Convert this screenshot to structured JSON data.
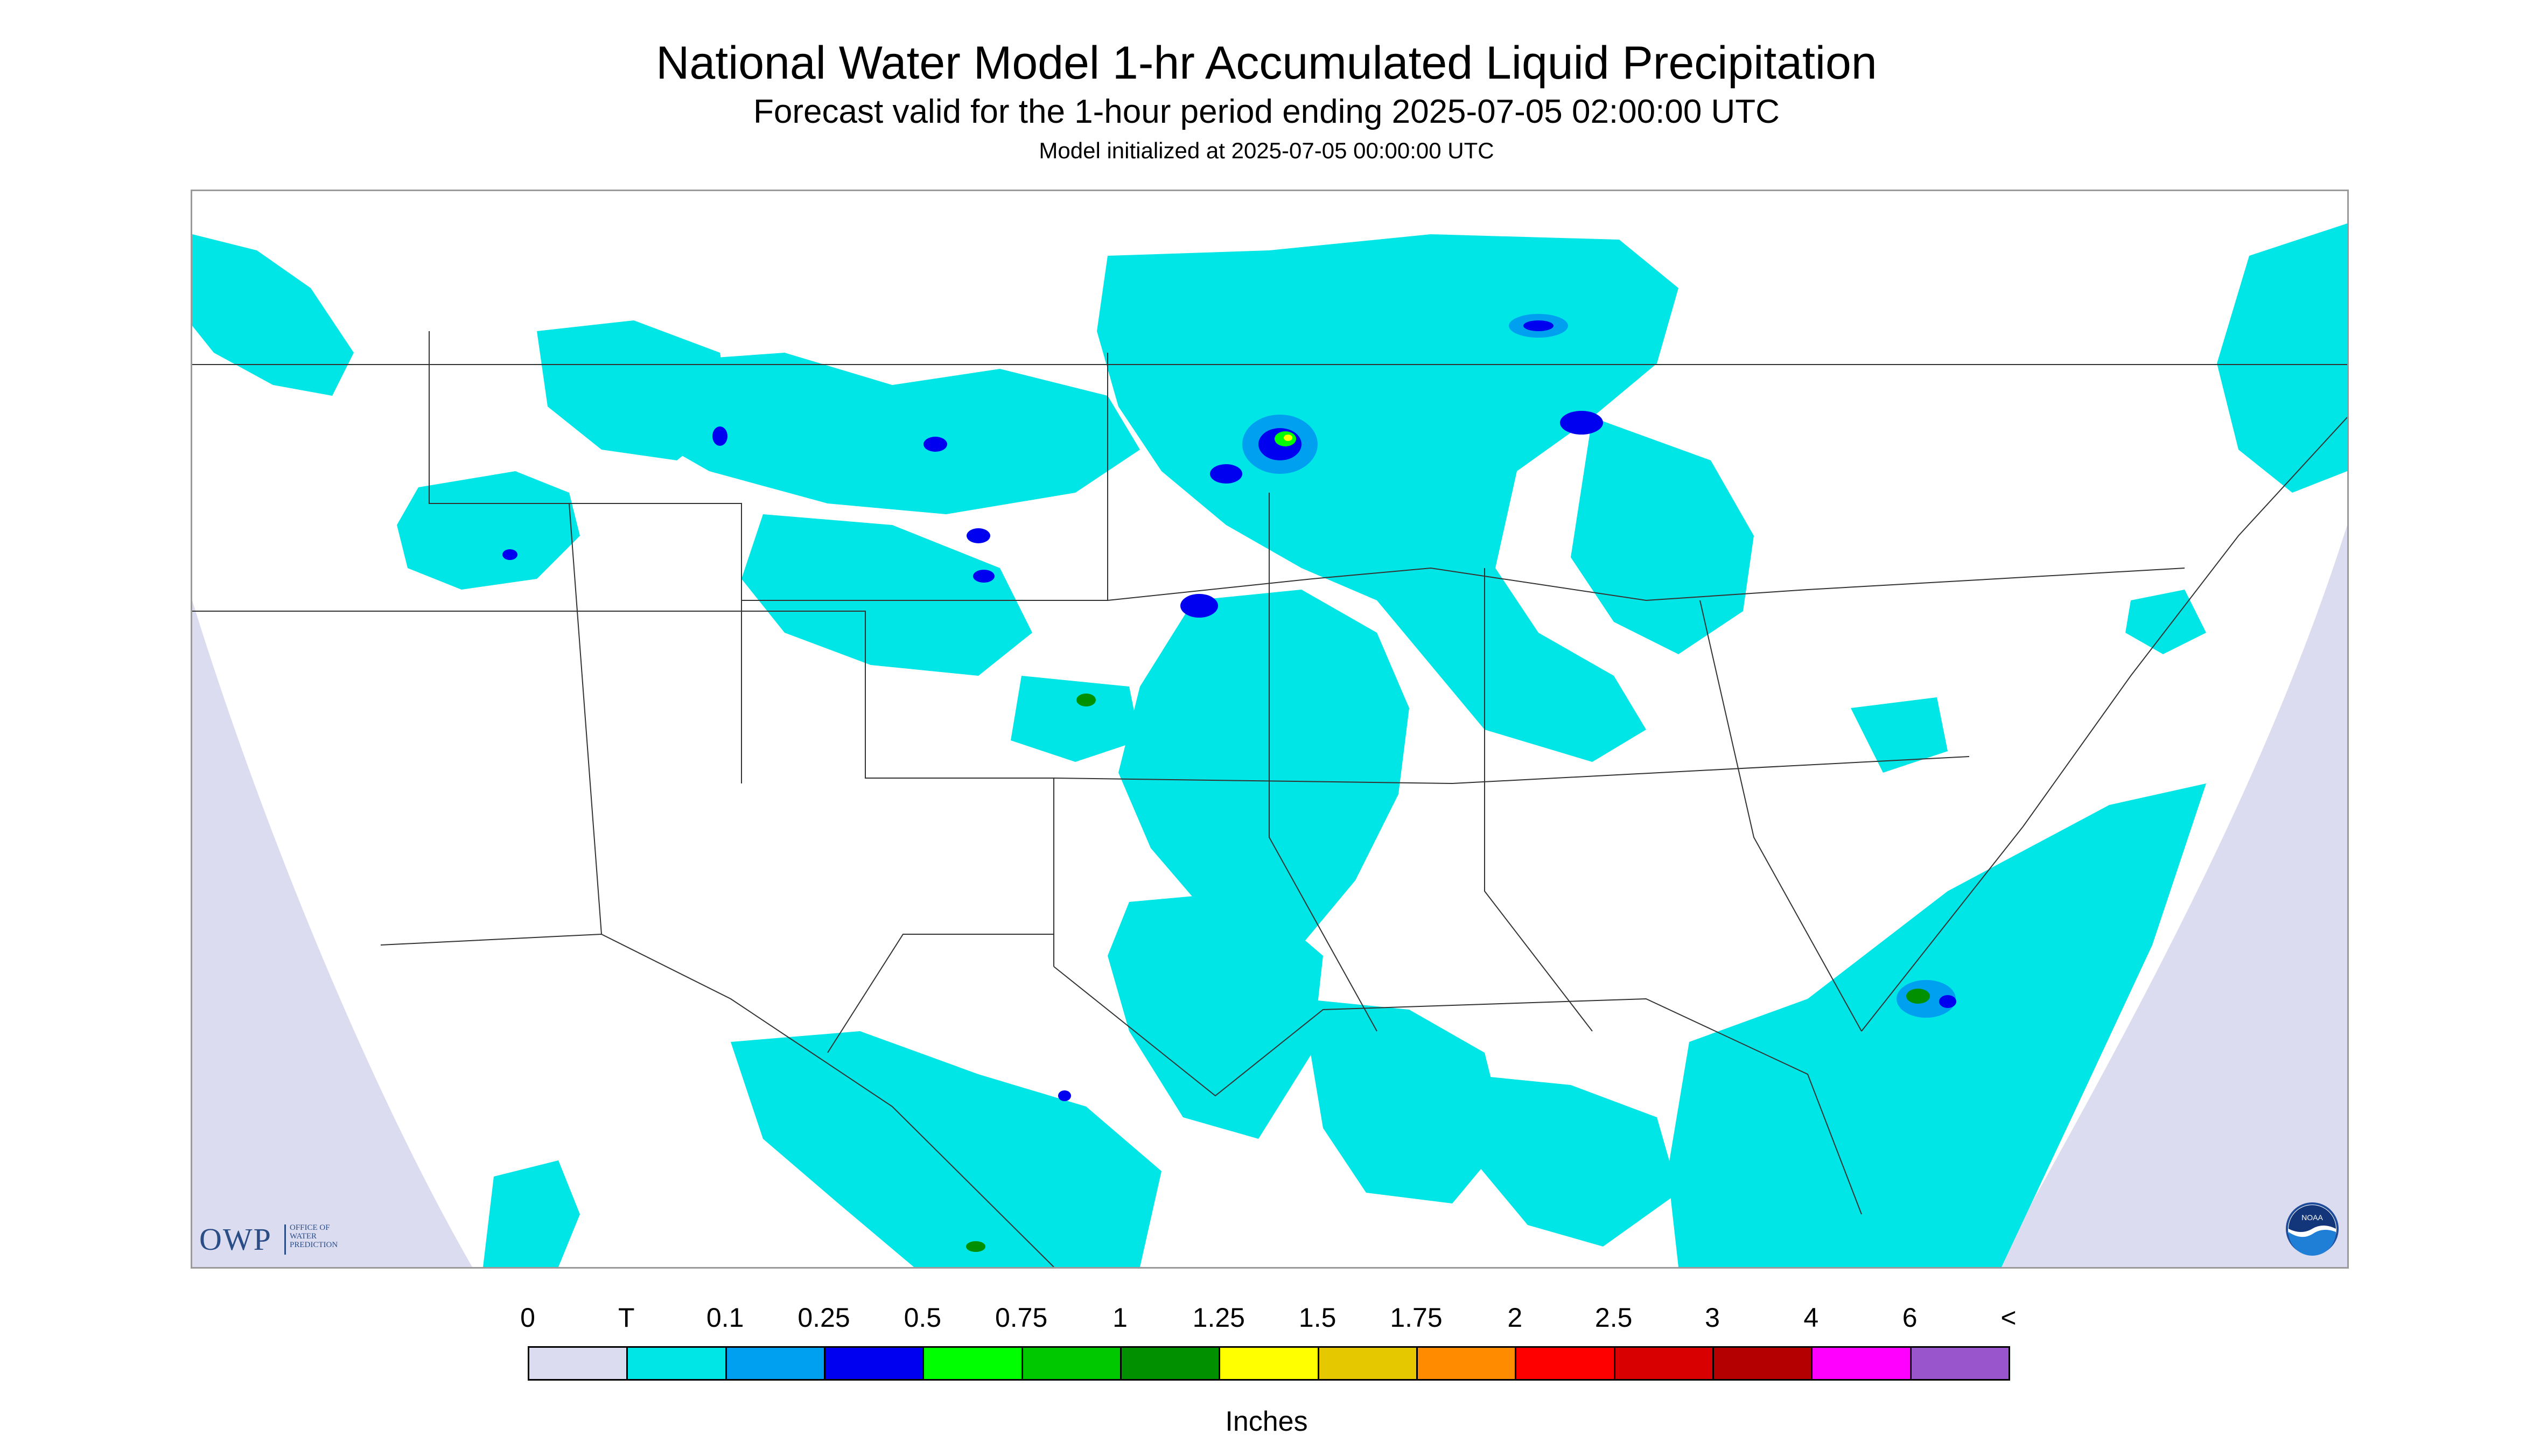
{
  "title": "National Water Model 1-hr Accumulated Liquid Precipitation",
  "subtitle": "Forecast valid for the 1-hour period ending 2025-07-05 02:00:00 UTC",
  "init_line": "Model initialized at 2025-07-05 00:00:00 UTC",
  "colorbar": {
    "labels": [
      "0",
      "T",
      "0.1",
      "0.25",
      "0.5",
      "0.75",
      "1",
      "1.25",
      "1.5",
      "1.75",
      "2",
      "2.5",
      "3",
      "4",
      "6",
      "<"
    ],
    "colors": [
      "#dcdcf0",
      "#00e6e6",
      "#00a0f0",
      "#0000f0",
      "#00ff00",
      "#00c800",
      "#009000",
      "#ffff00",
      "#e6c800",
      "#ff8c00",
      "#ff0000",
      "#d80000",
      "#b40000",
      "#ff00ff",
      "#9955cc"
    ],
    "units": "Inches"
  },
  "logos": {
    "owp_big": "OWP",
    "owp_small": [
      "OFFICE OF",
      "WATER",
      "PREDICTION"
    ],
    "noaa": "NOAA"
  },
  "map": {
    "outside_color": "#dcdcf0",
    "trace_color": "#00e6e6",
    "light_blue": "#00a0f0",
    "blue": "#0000f0",
    "green": "#00ff00",
    "darkgreen": "#009000",
    "yellow": "#ffff00"
  }
}
